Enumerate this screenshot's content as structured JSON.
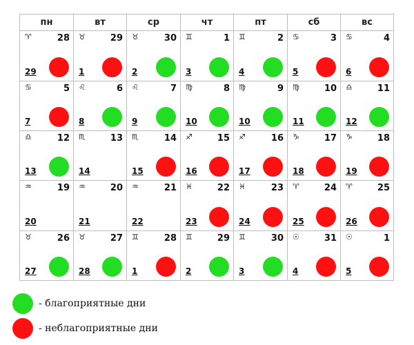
{
  "colors": {
    "good": "#22dd22",
    "bad": "#ff1111",
    "border": "#bdbdbd"
  },
  "weekdays": [
    "пн",
    "вт",
    "ср",
    "чт",
    "пт",
    "сб",
    "вс"
  ],
  "weeks": [
    [
      {
        "zodiac": "♈",
        "lunar": "28",
        "solar": "29",
        "mark": "bad"
      },
      {
        "zodiac": "♉",
        "lunar": "29",
        "solar": "1",
        "mark": "bad"
      },
      {
        "zodiac": "♉",
        "lunar": "30",
        "solar": "2",
        "mark": "good"
      },
      {
        "zodiac": "♊",
        "lunar": "1",
        "solar": "3",
        "mark": "good"
      },
      {
        "zodiac": "♊",
        "lunar": "2",
        "solar": "4",
        "mark": "good"
      },
      {
        "zodiac": "♋",
        "lunar": "3",
        "solar": "5",
        "mark": "bad"
      },
      {
        "zodiac": "♋",
        "lunar": "4",
        "solar": "6",
        "mark": "bad"
      }
    ],
    [
      {
        "zodiac": "♋",
        "lunar": "5",
        "solar": "7",
        "mark": "bad"
      },
      {
        "zodiac": "♌",
        "lunar": "6",
        "solar": "8",
        "mark": "good"
      },
      {
        "zodiac": "♌",
        "lunar": "7",
        "solar": "9",
        "mark": "good"
      },
      {
        "zodiac": "♍",
        "lunar": "8",
        "solar": "10",
        "mark": "good"
      },
      {
        "zodiac": "♍",
        "lunar": "9",
        "solar": "10",
        "mark": "good"
      },
      {
        "zodiac": "♍",
        "lunar": "10",
        "solar": "11",
        "mark": "good"
      },
      {
        "zodiac": "♎",
        "lunar": "11",
        "solar": "12",
        "mark": "good"
      }
    ],
    [
      {
        "zodiac": "♎",
        "lunar": "12",
        "solar": "13",
        "mark": "good"
      },
      {
        "zodiac": "♏",
        "lunar": "13",
        "solar": "14",
        "mark": "none"
      },
      {
        "zodiac": "♏",
        "lunar": "14",
        "solar": "15",
        "mark": "bad"
      },
      {
        "zodiac": "♐",
        "lunar": "15",
        "solar": "16",
        "mark": "bad"
      },
      {
        "zodiac": "♐",
        "lunar": "16",
        "solar": "17",
        "mark": "bad"
      },
      {
        "zodiac": "♑",
        "lunar": "17",
        "solar": "18",
        "mark": "bad"
      },
      {
        "zodiac": "♑",
        "lunar": "18",
        "solar": "19",
        "mark": "bad"
      }
    ],
    [
      {
        "zodiac": "♒",
        "lunar": "19",
        "solar": "20",
        "mark": "none"
      },
      {
        "zodiac": "♒",
        "lunar": "20",
        "solar": "21",
        "mark": "none"
      },
      {
        "zodiac": "♒",
        "lunar": "21",
        "solar": "22",
        "mark": "none"
      },
      {
        "zodiac": "♓",
        "lunar": "22",
        "solar": "23",
        "mark": "bad"
      },
      {
        "zodiac": "♓",
        "lunar": "23",
        "solar": "24",
        "mark": "bad"
      },
      {
        "zodiac": "♈",
        "lunar": "24",
        "solar": "25",
        "mark": "bad"
      },
      {
        "zodiac": "♈",
        "lunar": "25",
        "solar": "26",
        "mark": "bad"
      }
    ],
    [
      {
        "zodiac": "♉",
        "lunar": "26",
        "solar": "27",
        "mark": "good"
      },
      {
        "zodiac": "♉",
        "lunar": "27",
        "solar": "28",
        "mark": "good"
      },
      {
        "zodiac": "♊",
        "lunar": "28",
        "solar": "1",
        "mark": "bad"
      },
      {
        "zodiac": "♊",
        "lunar": "29",
        "solar": "2",
        "mark": "good"
      },
      {
        "zodiac": "♊",
        "lunar": "30",
        "solar": "3",
        "mark": "good"
      },
      {
        "zodiac": "☉",
        "lunar": "31",
        "solar": "4",
        "mark": "bad"
      },
      {
        "zodiac": "☉",
        "lunar": "1",
        "solar": "5",
        "mark": "bad"
      }
    ]
  ],
  "legend": {
    "good_label": "- благоприятные дни",
    "bad_label": "- неблагоприятные дни"
  }
}
